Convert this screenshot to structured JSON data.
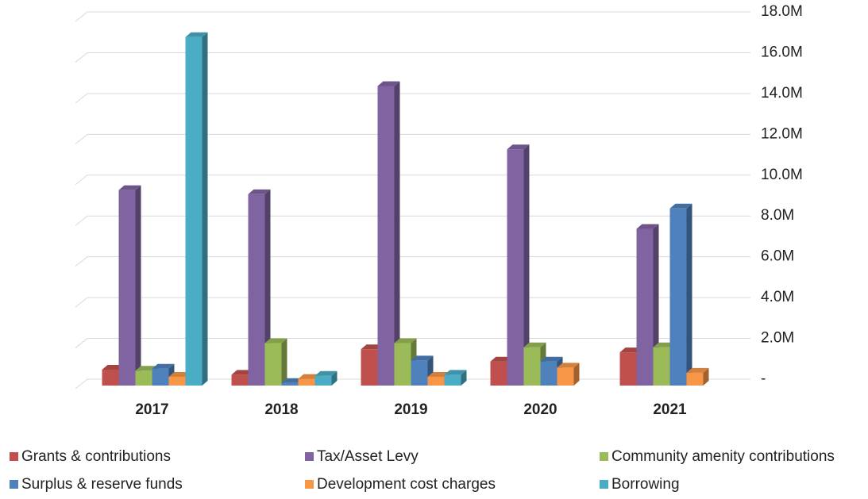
{
  "chart_data": {
    "type": "bar3d",
    "categories": [
      "2017",
      "2018",
      "2019",
      "2020",
      "2021"
    ],
    "series": [
      {
        "name": "Grants & contributions",
        "color": "#c0504d",
        "values": [
          700000,
          450000,
          1700000,
          1100000,
          1550000
        ]
      },
      {
        "name": "Tax/Asset Levy",
        "color": "#8064a2",
        "values": [
          9500000,
          9300000,
          14600000,
          11500000,
          7600000
        ]
      },
      {
        "name": "Community amenity contributions",
        "color": "#9bbb59",
        "values": [
          650000,
          2000000,
          2000000,
          1800000,
          1800000
        ]
      },
      {
        "name": "Surplus & reserve funds",
        "color": "#4f81bd",
        "values": [
          750000,
          50000,
          1150000,
          1100000,
          8600000
        ]
      },
      {
        "name": "Development cost charges",
        "color": "#f79646",
        "values": [
          350000,
          250000,
          350000,
          800000,
          550000
        ]
      },
      {
        "name": "Borrowing",
        "color": "#4bacc6",
        "values": [
          17000000,
          400000,
          450000,
          null,
          null
        ]
      }
    ],
    "ylim": [
      0,
      18000000
    ],
    "yticks": [
      {
        "value": 0,
        "label": "-"
      },
      {
        "value": 2000000,
        "label": "2.0M"
      },
      {
        "value": 4000000,
        "label": "4.0M"
      },
      {
        "value": 6000000,
        "label": "6.0M"
      },
      {
        "value": 8000000,
        "label": "8.0M"
      },
      {
        "value": 10000000,
        "label": "10.0M"
      },
      {
        "value": 12000000,
        "label": "12.0M"
      },
      {
        "value": 14000000,
        "label": "14.0M"
      },
      {
        "value": 16000000,
        "label": "16.0M"
      },
      {
        "value": 18000000,
        "label": "18.0M"
      }
    ],
    "grid": true
  }
}
